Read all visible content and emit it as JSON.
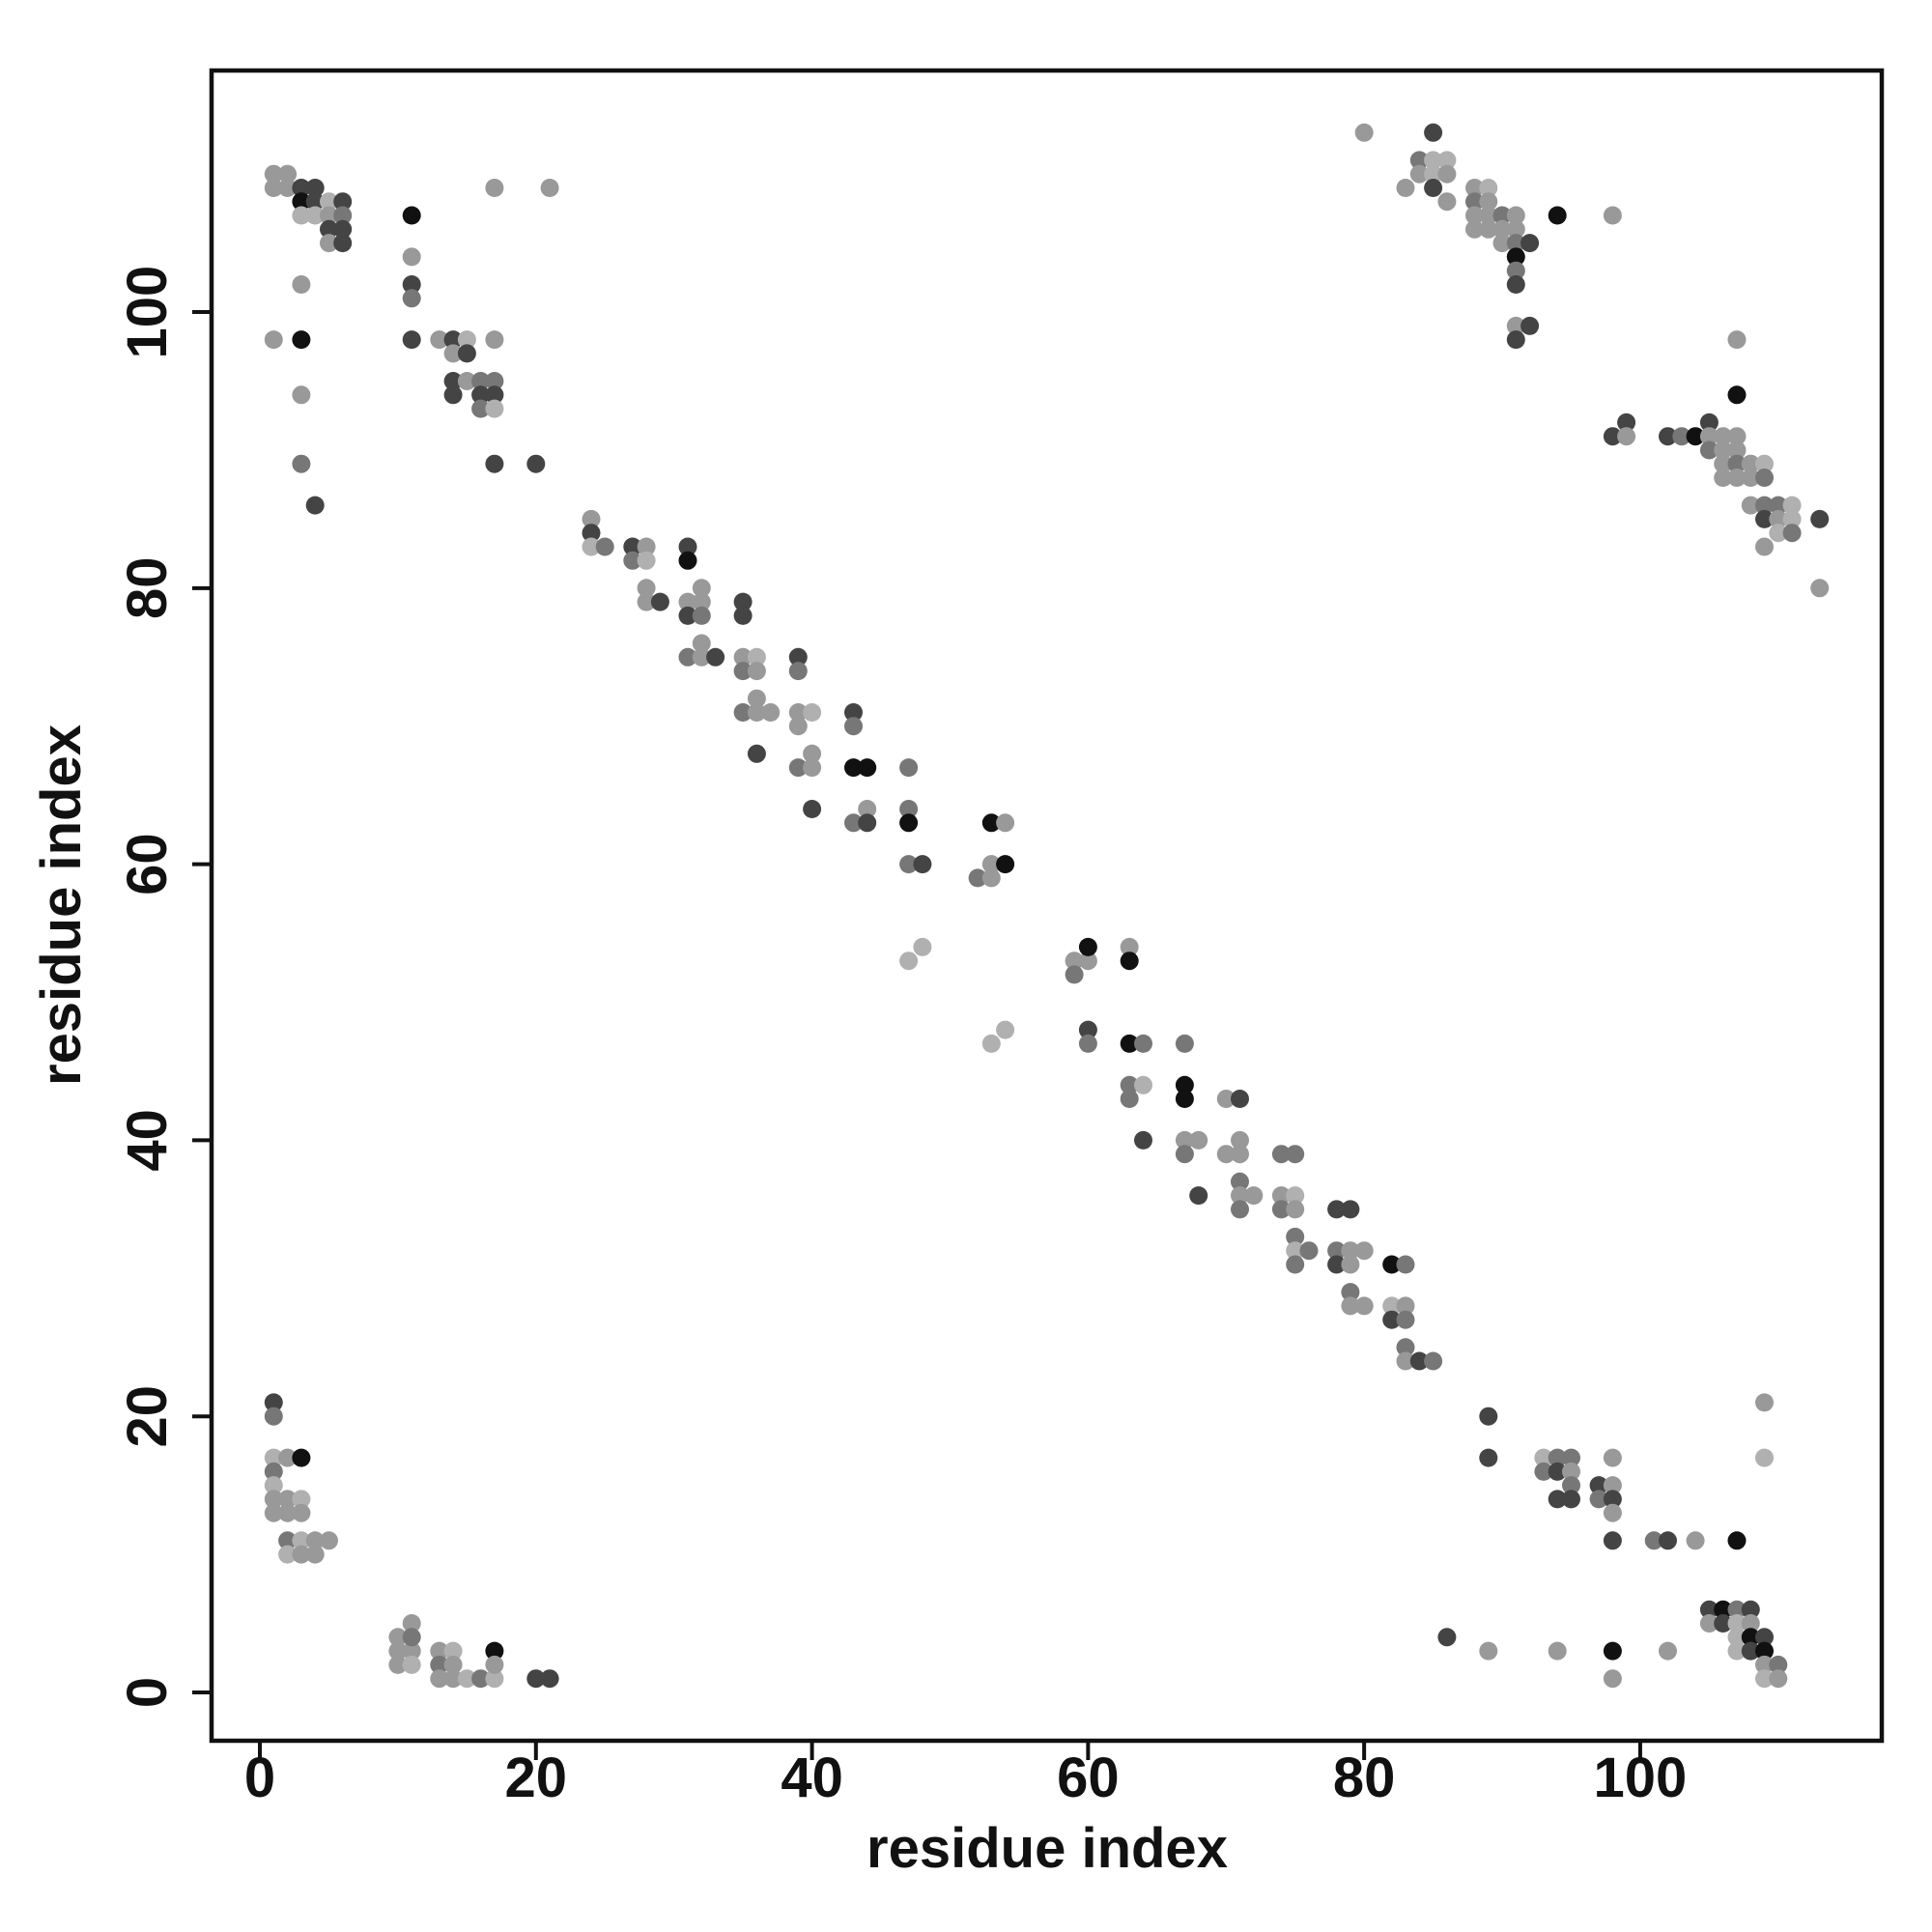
{
  "chart_data": {
    "type": "scatter",
    "title": "",
    "xlabel": "residue index",
    "ylabel": "residue index",
    "xlim": [
      -3.5,
      117.5
    ],
    "ylim": [
      -3.5,
      117.5
    ],
    "x_ticks": [
      "0",
      "20",
      "40",
      "60",
      "80",
      "100"
    ],
    "y_ticks": [
      "0",
      "20",
      "40",
      "60",
      "80",
      "100"
    ],
    "grid": false,
    "legend": "none",
    "colors": {
      "darkest": "#111111",
      "dark": "#444444",
      "medium": "#777777",
      "light": "#999999",
      "lightest": "#b0b0b0"
    },
    "points": [
      [
        1,
        110,
        "light"
      ],
      [
        2,
        110,
        "light"
      ],
      [
        1,
        109,
        "light"
      ],
      [
        2,
        109,
        "light"
      ],
      [
        3,
        109,
        "dark"
      ],
      [
        4,
        109,
        "dark"
      ],
      [
        3,
        108,
        "darkest"
      ],
      [
        4,
        108,
        "dark"
      ],
      [
        5,
        108,
        "lightest"
      ],
      [
        6,
        108,
        "dark"
      ],
      [
        3,
        107,
        "lightest"
      ],
      [
        4,
        107,
        "lightest"
      ],
      [
        5,
        107,
        "light"
      ],
      [
        6,
        107,
        "medium"
      ],
      [
        5,
        106,
        "dark"
      ],
      [
        6,
        106,
        "dark"
      ],
      [
        5,
        105,
        "light"
      ],
      [
        6,
        105,
        "dark"
      ],
      [
        3,
        102,
        "light"
      ],
      [
        1,
        98,
        "light"
      ],
      [
        3,
        98,
        "darkest"
      ],
      [
        3,
        94,
        "light"
      ],
      [
        3,
        89,
        "medium"
      ],
      [
        4,
        86,
        "dark"
      ],
      [
        11,
        107,
        "darkest"
      ],
      [
        11,
        104,
        "light"
      ],
      [
        11,
        102,
        "dark"
      ],
      [
        11,
        101,
        "medium"
      ],
      [
        11,
        98,
        "dark"
      ],
      [
        13,
        98,
        "light"
      ],
      [
        14,
        98,
        "dark"
      ],
      [
        15,
        98,
        "lightest"
      ],
      [
        14,
        97,
        "light"
      ],
      [
        15,
        97,
        "dark"
      ],
      [
        14,
        95,
        "dark"
      ],
      [
        15,
        95,
        "light"
      ],
      [
        16,
        95,
        "medium"
      ],
      [
        17,
        95,
        "medium"
      ],
      [
        14,
        94,
        "dark"
      ],
      [
        16,
        94,
        "dark"
      ],
      [
        17,
        94,
        "dark"
      ],
      [
        16,
        93,
        "medium"
      ],
      [
        17,
        93,
        "lightest"
      ],
      [
        17,
        98,
        "light"
      ],
      [
        17,
        109,
        "light"
      ],
      [
        21,
        109,
        "light"
      ],
      [
        17,
        89,
        "dark"
      ],
      [
        20,
        89,
        "dark"
      ],
      [
        24,
        85,
        "light"
      ],
      [
        24,
        84,
        "dark"
      ],
      [
        24,
        83,
        "lightest"
      ],
      [
        25,
        83,
        "medium"
      ],
      [
        27,
        83,
        "dark"
      ],
      [
        28,
        83,
        "light"
      ],
      [
        27,
        82,
        "medium"
      ],
      [
        28,
        82,
        "lightest"
      ],
      [
        31,
        83,
        "dark"
      ],
      [
        31,
        82,
        "darkest"
      ],
      [
        28,
        80,
        "light"
      ],
      [
        28,
        79,
        "light"
      ],
      [
        29,
        79,
        "dark"
      ],
      [
        31,
        79,
        "light"
      ],
      [
        32,
        79,
        "light"
      ],
      [
        32,
        80,
        "light"
      ],
      [
        31,
        78,
        "dark"
      ],
      [
        32,
        78,
        "medium"
      ],
      [
        35,
        79,
        "dark"
      ],
      [
        35,
        78,
        "dark"
      ],
      [
        31,
        75,
        "medium"
      ],
      [
        32,
        76,
        "light"
      ],
      [
        32,
        75,
        "light"
      ],
      [
        33,
        75,
        "dark"
      ],
      [
        35,
        75,
        "light"
      ],
      [
        36,
        75,
        "lightest"
      ],
      [
        35,
        74,
        "medium"
      ],
      [
        36,
        74,
        "light"
      ],
      [
        35,
        71,
        "medium"
      ],
      [
        36,
        72,
        "light"
      ],
      [
        36,
        71,
        "light"
      ],
      [
        37,
        71,
        "light"
      ],
      [
        36,
        68,
        "dark"
      ],
      [
        39,
        75,
        "dark"
      ],
      [
        39,
        74,
        "medium"
      ],
      [
        39,
        71,
        "light"
      ],
      [
        40,
        71,
        "lightest"
      ],
      [
        39,
        70,
        "light"
      ],
      [
        40,
        68,
        "light"
      ],
      [
        39,
        67,
        "medium"
      ],
      [
        40,
        67,
        "light"
      ],
      [
        40,
        64,
        "dark"
      ],
      [
        43,
        71,
        "dark"
      ],
      [
        43,
        70,
        "medium"
      ],
      [
        43,
        67,
        "darkest"
      ],
      [
        44,
        67,
        "darkest"
      ],
      [
        43,
        63,
        "medium"
      ],
      [
        44,
        64,
        "light"
      ],
      [
        44,
        63,
        "dark"
      ],
      [
        47,
        67,
        "medium"
      ],
      [
        47,
        64,
        "medium"
      ],
      [
        47,
        63,
        "darkest"
      ],
      [
        47,
        60,
        "medium"
      ],
      [
        48,
        60,
        "dark"
      ],
      [
        47,
        53,
        "lightest"
      ],
      [
        48,
        54,
        "lightest"
      ],
      [
        52,
        59,
        "medium"
      ],
      [
        53,
        59,
        "light"
      ],
      [
        53,
        60,
        "light"
      ],
      [
        54,
        60,
        "darkest"
      ],
      [
        53,
        63,
        "darkest"
      ],
      [
        54,
        63,
        "light"
      ],
      [
        53,
        47,
        "lightest"
      ],
      [
        54,
        48,
        "lightest"
      ],
      [
        59,
        53,
        "light"
      ],
      [
        59,
        52,
        "medium"
      ],
      [
        60,
        53,
        "light"
      ],
      [
        60,
        54,
        "darkest"
      ],
      [
        60,
        48,
        "dark"
      ],
      [
        60,
        47,
        "medium"
      ],
      [
        63,
        54,
        "light"
      ],
      [
        63,
        53,
        "darkest"
      ],
      [
        63,
        47,
        "darkest"
      ],
      [
        64,
        47,
        "medium"
      ],
      [
        63,
        44,
        "medium"
      ],
      [
        64,
        44,
        "lightest"
      ],
      [
        63,
        43,
        "medium"
      ],
      [
        64,
        40,
        "dark"
      ],
      [
        67,
        47,
        "medium"
      ],
      [
        67,
        44,
        "darkest"
      ],
      [
        67,
        43,
        "darkest"
      ],
      [
        67,
        40,
        "light"
      ],
      [
        68,
        40,
        "light"
      ],
      [
        67,
        39,
        "medium"
      ],
      [
        68,
        36,
        "dark"
      ],
      [
        70,
        43,
        "light"
      ],
      [
        71,
        43,
        "dark"
      ],
      [
        70,
        39,
        "light"
      ],
      [
        71,
        40,
        "light"
      ],
      [
        71,
        39,
        "light"
      ],
      [
        71,
        37,
        "medium"
      ],
      [
        71,
        36,
        "light"
      ],
      [
        72,
        36,
        "light"
      ],
      [
        71,
        35,
        "medium"
      ],
      [
        74,
        39,
        "medium"
      ],
      [
        75,
        39,
        "medium"
      ],
      [
        74,
        36,
        "light"
      ],
      [
        75,
        36,
        "lightest"
      ],
      [
        74,
        35,
        "medium"
      ],
      [
        75,
        35,
        "light"
      ],
      [
        75,
        33,
        "medium"
      ],
      [
        75,
        32,
        "lightest"
      ],
      [
        76,
        32,
        "medium"
      ],
      [
        75,
        31,
        "medium"
      ],
      [
        78,
        35,
        "dark"
      ],
      [
        79,
        35,
        "dark"
      ],
      [
        78,
        32,
        "medium"
      ],
      [
        79,
        32,
        "light"
      ],
      [
        80,
        32,
        "light"
      ],
      [
        78,
        31,
        "dark"
      ],
      [
        79,
        31,
        "light"
      ],
      [
        79,
        29,
        "medium"
      ],
      [
        79,
        28,
        "light"
      ],
      [
        80,
        28,
        "light"
      ],
      [
        82,
        31,
        "darkest"
      ],
      [
        83,
        31,
        "medium"
      ],
      [
        82,
        28,
        "lightest"
      ],
      [
        83,
        28,
        "light"
      ],
      [
        82,
        27,
        "dark"
      ],
      [
        83,
        27,
        "medium"
      ],
      [
        83,
        25,
        "medium"
      ],
      [
        83,
        24,
        "light"
      ],
      [
        84,
        24,
        "dark"
      ],
      [
        85,
        24,
        "medium"
      ],
      [
        80,
        113,
        "light"
      ],
      [
        85,
        113,
        "dark"
      ],
      [
        84,
        111,
        "medium"
      ],
      [
        85,
        111,
        "lightest"
      ],
      [
        86,
        111,
        "lightest"
      ],
      [
        84,
        110,
        "light"
      ],
      [
        85,
        110,
        "lightest"
      ],
      [
        86,
        110,
        "light"
      ],
      [
        83,
        109,
        "light"
      ],
      [
        85,
        109,
        "dark"
      ],
      [
        86,
        108,
        "light"
      ],
      [
        88,
        109,
        "light"
      ],
      [
        89,
        109,
        "lightest"
      ],
      [
        88,
        108,
        "medium"
      ],
      [
        89,
        108,
        "light"
      ],
      [
        88,
        107,
        "light"
      ],
      [
        89,
        107,
        "light"
      ],
      [
        90,
        107,
        "medium"
      ],
      [
        91,
        107,
        "light"
      ],
      [
        88,
        106,
        "light"
      ],
      [
        89,
        106,
        "light"
      ],
      [
        90,
        106,
        "light"
      ],
      [
        91,
        106,
        "light"
      ],
      [
        90,
        105,
        "light"
      ],
      [
        91,
        105,
        "medium"
      ],
      [
        92,
        105,
        "dark"
      ],
      [
        94,
        107,
        "darkest"
      ],
      [
        91,
        104,
        "darkest"
      ],
      [
        91,
        103,
        "medium"
      ],
      [
        91,
        102,
        "dark"
      ],
      [
        91,
        99,
        "light"
      ],
      [
        92,
        99,
        "dark"
      ],
      [
        91,
        98,
        "dark"
      ],
      [
        98,
        107,
        "light"
      ],
      [
        107,
        98,
        "light"
      ],
      [
        107,
        94,
        "darkest"
      ],
      [
        98,
        91,
        "dark"
      ],
      [
        99,
        92,
        "dark"
      ],
      [
        99,
        91,
        "light"
      ],
      [
        102,
        91,
        "dark"
      ],
      [
        103,
        91,
        "medium"
      ],
      [
        104,
        91,
        "darkest"
      ],
      [
        105,
        92,
        "dark"
      ],
      [
        105,
        91,
        "light"
      ],
      [
        106,
        91,
        "light"
      ],
      [
        107,
        91,
        "light"
      ],
      [
        105,
        90,
        "medium"
      ],
      [
        106,
        90,
        "light"
      ],
      [
        107,
        90,
        "light"
      ],
      [
        106,
        89,
        "light"
      ],
      [
        107,
        89,
        "medium"
      ],
      [
        108,
        89,
        "light"
      ],
      [
        109,
        89,
        "lightest"
      ],
      [
        106,
        88,
        "light"
      ],
      [
        107,
        88,
        "light"
      ],
      [
        108,
        88,
        "light"
      ],
      [
        109,
        88,
        "medium"
      ],
      [
        108,
        86,
        "light"
      ],
      [
        109,
        86,
        "medium"
      ],
      [
        110,
        86,
        "medium"
      ],
      [
        111,
        86,
        "lightest"
      ],
      [
        109,
        85,
        "dark"
      ],
      [
        110,
        85,
        "light"
      ],
      [
        111,
        85,
        "lightest"
      ],
      [
        110,
        84,
        "lightest"
      ],
      [
        111,
        84,
        "medium"
      ],
      [
        113,
        85,
        "dark"
      ],
      [
        109,
        83,
        "light"
      ],
      [
        113,
        80,
        "light"
      ],
      [
        1,
        21,
        "dark"
      ],
      [
        1,
        20,
        "medium"
      ],
      [
        1,
        17,
        "lightest"
      ],
      [
        2,
        17,
        "light"
      ],
      [
        3,
        17,
        "darkest"
      ],
      [
        1,
        16,
        "medium"
      ],
      [
        1,
        15,
        "lightest"
      ],
      [
        1,
        14,
        "light"
      ],
      [
        2,
        14,
        "light"
      ],
      [
        3,
        14,
        "lightest"
      ],
      [
        1,
        13,
        "light"
      ],
      [
        2,
        13,
        "light"
      ],
      [
        3,
        13,
        "light"
      ],
      [
        2,
        11,
        "medium"
      ],
      [
        3,
        11,
        "lightest"
      ],
      [
        4,
        11,
        "light"
      ],
      [
        5,
        11,
        "light"
      ],
      [
        2,
        10,
        "lightest"
      ],
      [
        3,
        10,
        "light"
      ],
      [
        4,
        10,
        "light"
      ],
      [
        10,
        4,
        "light"
      ],
      [
        11,
        5,
        "light"
      ],
      [
        10,
        3,
        "light"
      ],
      [
        11,
        3,
        "light"
      ],
      [
        11,
        4,
        "medium"
      ],
      [
        10,
        2,
        "light"
      ],
      [
        11,
        2,
        "lightest"
      ],
      [
        13,
        3,
        "light"
      ],
      [
        14,
        3,
        "lightest"
      ],
      [
        13,
        2,
        "medium"
      ],
      [
        14,
        2,
        "light"
      ],
      [
        13,
        1,
        "light"
      ],
      [
        14,
        1,
        "light"
      ],
      [
        15,
        1,
        "lightest"
      ],
      [
        16,
        1,
        "medium"
      ],
      [
        17,
        1,
        "lightest"
      ],
      [
        17,
        3,
        "darkest"
      ],
      [
        17,
        2,
        "light"
      ],
      [
        20,
        1,
        "dark"
      ],
      [
        21,
        1,
        "dark"
      ],
      [
        89,
        20,
        "dark"
      ],
      [
        89,
        17,
        "dark"
      ],
      [
        93,
        17,
        "lightest"
      ],
      [
        94,
        17,
        "medium"
      ],
      [
        95,
        17,
        "medium"
      ],
      [
        93,
        16,
        "medium"
      ],
      [
        94,
        16,
        "dark"
      ],
      [
        95,
        16,
        "light"
      ],
      [
        95,
        15,
        "medium"
      ],
      [
        97,
        15,
        "dark"
      ],
      [
        98,
        15,
        "light"
      ],
      [
        94,
        14,
        "dark"
      ],
      [
        95,
        14,
        "dark"
      ],
      [
        97,
        14,
        "medium"
      ],
      [
        98,
        14,
        "dark"
      ],
      [
        98,
        13,
        "light"
      ],
      [
        98,
        17,
        "light"
      ],
      [
        98,
        11,
        "dark"
      ],
      [
        101,
        11,
        "medium"
      ],
      [
        102,
        11,
        "dark"
      ],
      [
        104,
        11,
        "light"
      ],
      [
        107,
        11,
        "darkest"
      ],
      [
        105,
        6,
        "dark"
      ],
      [
        106,
        6,
        "darkest"
      ],
      [
        107,
        6,
        "medium"
      ],
      [
        108,
        6,
        "dark"
      ],
      [
        105,
        5,
        "light"
      ],
      [
        106,
        5,
        "dark"
      ],
      [
        107,
        5,
        "lightest"
      ],
      [
        108,
        5,
        "light"
      ],
      [
        107,
        4,
        "lightest"
      ],
      [
        108,
        4,
        "darkest"
      ],
      [
        109,
        4,
        "dark"
      ],
      [
        107,
        3,
        "lightest"
      ],
      [
        108,
        3,
        "dark"
      ],
      [
        109,
        3,
        "darkest"
      ],
      [
        109,
        2,
        "light"
      ],
      [
        110,
        2,
        "medium"
      ],
      [
        109,
        1,
        "lightest"
      ],
      [
        110,
        1,
        "light"
      ],
      [
        109,
        21,
        "light"
      ],
      [
        109,
        17,
        "lightest"
      ],
      [
        86,
        4,
        "dark"
      ],
      [
        89,
        3,
        "light"
      ],
      [
        94,
        3,
        "light"
      ],
      [
        98,
        3,
        "darkest"
      ],
      [
        98,
        1,
        "light"
      ],
      [
        102,
        3,
        "light"
      ]
    ]
  }
}
